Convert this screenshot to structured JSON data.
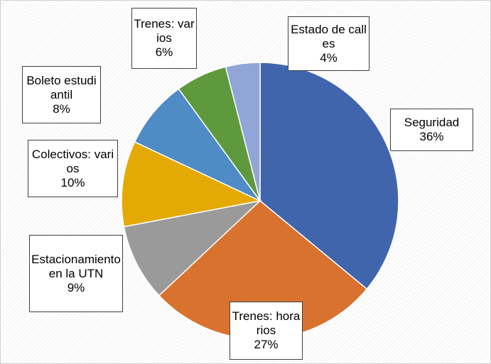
{
  "chart_data": {
    "type": "pie",
    "categories": [
      "Seguridad",
      "Trenes: horarios",
      "Estacionamiento en la UTN",
      "Colectivos: varios",
      "Boleto estudiantil",
      "Trenes: varios",
      "Estado de calles"
    ],
    "values": [
      36,
      27,
      9,
      10,
      8,
      6,
      4
    ],
    "value_labels": [
      "36%",
      "27%",
      "9%",
      "10%",
      "8%",
      "6%",
      "4%"
    ],
    "colors": [
      "#4165ad",
      "#d8722e",
      "#9a9a9a",
      "#e4a904",
      "#4f8bc4",
      "#5f993d",
      "#91a5d6"
    ]
  }
}
